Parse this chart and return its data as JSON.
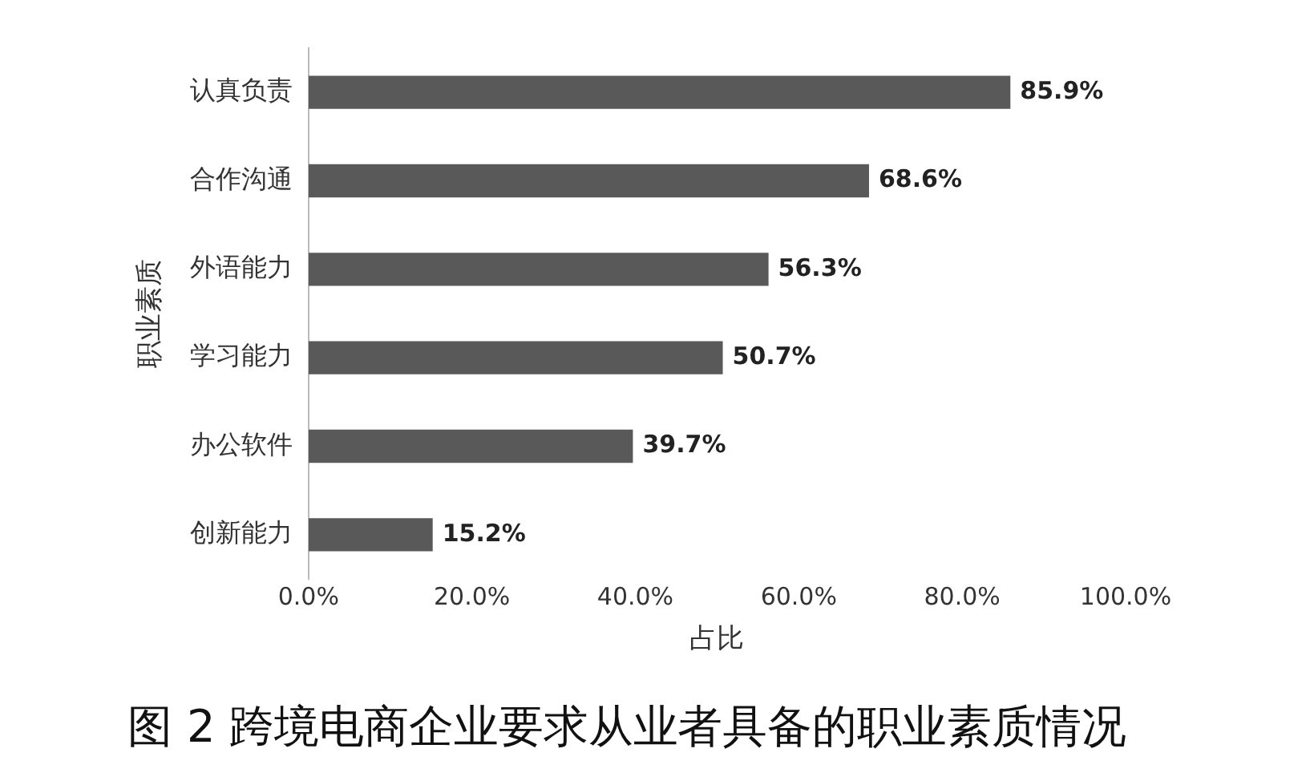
{
  "chart_data": {
    "type": "bar",
    "orientation": "horizontal",
    "title": "图 2 跨境电商企业要求从业者具备的职业素质情况",
    "xlabel": "占比",
    "ylabel": "职业素质",
    "categories": [
      "认真负责",
      "合作沟通",
      "外语能力",
      "学习能力",
      "办公软件",
      "创新能力"
    ],
    "values": [
      85.9,
      68.6,
      56.3,
      50.7,
      39.7,
      15.2
    ],
    "value_labels": [
      "85.9%",
      "68.6%",
      "56.3%",
      "50.7%",
      "39.7%",
      "15.2%"
    ],
    "color": "#595959",
    "xlim": [
      0,
      100
    ],
    "xticks": [
      {
        "value": 0,
        "label": "0.0%"
      },
      {
        "value": 20,
        "label": "20.0%"
      },
      {
        "value": 40,
        "label": "40.0%"
      },
      {
        "value": 60,
        "label": "60.0%"
      },
      {
        "value": 80,
        "label": "80.0%"
      },
      {
        "value": 100,
        "label": "100.0%"
      }
    ],
    "grid": false,
    "legend": false
  }
}
